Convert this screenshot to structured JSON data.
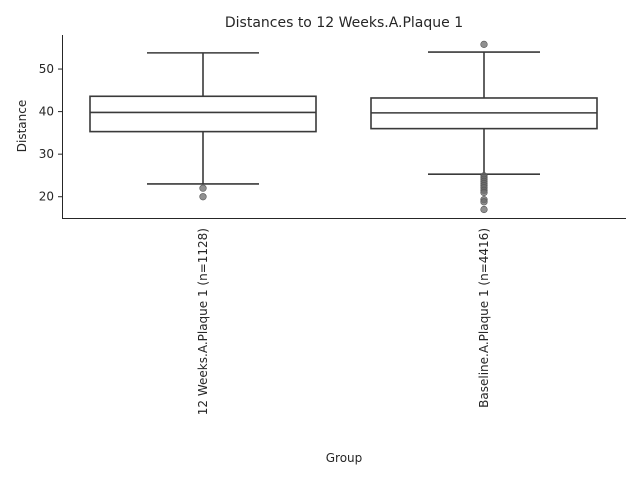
{
  "chart_data": {
    "type": "box",
    "title": "Distances to 12 Weeks.A.Plaque 1",
    "xlabel": "Group",
    "ylabel": "Distance",
    "ylim": [
      15,
      58
    ],
    "yticks": [
      20,
      30,
      40,
      50
    ],
    "grid": false,
    "categories": [
      "12 Weeks.A.Plaque 1 (n=1128)",
      "Baseline.A.Plaque 1 (n=4416)"
    ],
    "boxes": [
      {
        "category": "12 Weeks.A.Plaque 1 (n=1128)",
        "whisker_low": 23.0,
        "q1": 35.3,
        "median": 39.8,
        "q3": 43.6,
        "whisker_high": 53.8,
        "outliers": [
          22.0,
          20.0
        ]
      },
      {
        "category": "Baseline.A.Plaque 1 (n=4416)",
        "whisker_low": 25.3,
        "q1": 36.0,
        "median": 39.7,
        "q3": 43.2,
        "whisker_high": 54.0,
        "outliers": [
          55.8,
          24.9,
          24.5,
          24.1,
          23.6,
          23.1,
          22.6,
          22.1,
          21.5,
          21.0,
          19.3,
          18.8,
          17.0
        ]
      }
    ]
  }
}
